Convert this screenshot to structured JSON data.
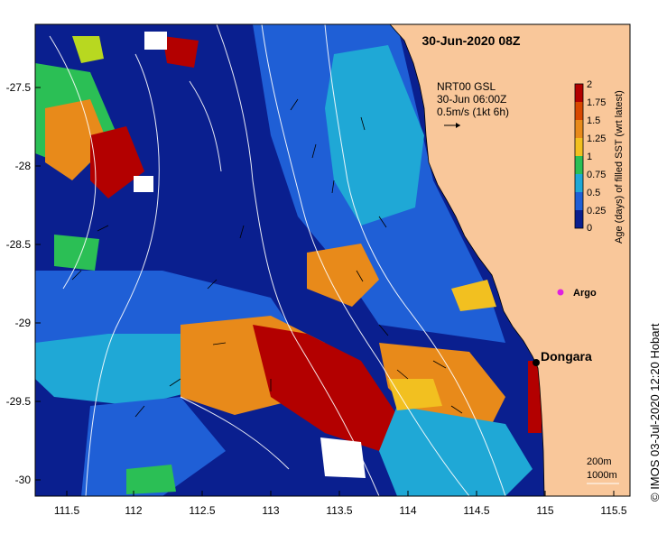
{
  "map": {
    "title": "30-Jun-2020 08Z",
    "info_lines": [
      "NRT00 GSL",
      "30-Jun 06:00Z",
      "0.5m/s (1kt 6h)"
    ],
    "colorbar": {
      "label": "Age (days) of filled SST (wrt latest)",
      "ticks": [
        "2",
        "1.75",
        "1.5",
        "1.25",
        "1",
        "0.75",
        "0.5",
        "0.25",
        "0"
      ],
      "colors": [
        "#b30000",
        "#d94800",
        "#e88a1a",
        "#f2c020",
        "#b8d820",
        "#2bbf55",
        "#1fa8d6",
        "#1f5fd6",
        "#0a1f8f"
      ]
    },
    "x_ticks": [
      "111.5",
      "112",
      "112.5",
      "113",
      "113.5",
      "114",
      "114.5",
      "115",
      "115.5"
    ],
    "y_ticks": [
      "-27.5",
      "-28",
      "-28.5",
      "-29",
      "-29.5",
      "-30"
    ],
    "places": {
      "dongara": "Dongara",
      "argo": "Argo"
    },
    "contour_legend": [
      "200m",
      "1000m"
    ],
    "credit": "© IMOS 03-Jul-2020 12:20 Hobart",
    "colors": {
      "land": "#f9c79a",
      "deep_blue": "#0a1f8f",
      "mid_blue": "#1f5fd6",
      "light_blue": "#1fa8d6",
      "orange": "#e88a1a",
      "dark_red": "#b30000",
      "argo": "#e020e0"
    }
  }
}
